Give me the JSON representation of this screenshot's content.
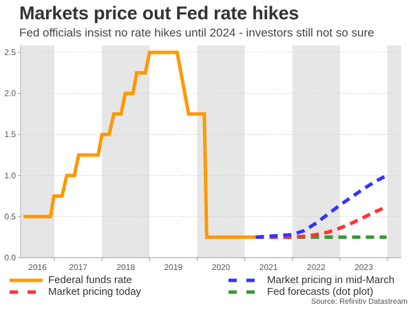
{
  "title": "Markets price out Fed rate hikes",
  "subtitle": "Fed officials insist no rate hikes until 2024 - investors still not so sure",
  "source": "Source: Refinitiv Datastream",
  "chart_data": {
    "type": "line",
    "title": "Markets price out Fed rate hikes",
    "subtitle": "Fed officials insist no rate hikes until 2024 - investors still not so sure",
    "xlabel": "",
    "ylabel": "",
    "xlim": [
      2016.3,
      2024.3
    ],
    "ylim": [
      0,
      2.6
    ],
    "yticks": [
      0.0,
      0.5,
      1.0,
      1.5,
      2.0,
      2.5
    ],
    "ytick_labels": [
      "0.0",
      "0.5",
      "1.0",
      "1.5",
      "2.0",
      "2.5"
    ],
    "xtick_labels": [
      "2016",
      "2017",
      "2018",
      "2019",
      "2020",
      "2021",
      "2022",
      "2023"
    ],
    "shaded_years": [
      2016,
      2018,
      2020,
      2022,
      2024
    ],
    "grid": "horizontal dotted",
    "legend_position": "bottom",
    "series": [
      {
        "name": "Federal funds rate",
        "color": "#ff9900",
        "style": "solid",
        "x": [
          2016.35,
          2016.92,
          2016.99,
          2017.16,
          2017.26,
          2017.42,
          2017.51,
          2017.92,
          2018.0,
          2018.15,
          2018.25,
          2018.4,
          2018.49,
          2018.65,
          2018.73,
          2018.91,
          2019.0,
          2019.58,
          2019.82,
          2020.15,
          2020.2,
          2021.23
        ],
        "y": [
          0.5,
          0.5,
          0.75,
          0.75,
          1.0,
          1.0,
          1.25,
          1.25,
          1.5,
          1.5,
          1.75,
          1.75,
          2.0,
          2.0,
          2.25,
          2.25,
          2.5,
          2.5,
          1.75,
          1.75,
          0.25,
          0.25
        ]
      },
      {
        "name": "Market pricing in mid-March",
        "color": "#3333ff",
        "style": "dashed",
        "x": [
          2021.23,
          2021.5,
          2021.75,
          2022.0,
          2022.25,
          2022.5,
          2022.75,
          2023.0,
          2023.25,
          2023.5,
          2023.75,
          2023.98
        ],
        "y": [
          0.25,
          0.26,
          0.27,
          0.28,
          0.33,
          0.42,
          0.53,
          0.64,
          0.74,
          0.84,
          0.93,
          1.0
        ]
      },
      {
        "name": "Market pricing today",
        "color": "#ff3333",
        "style": "dashed",
        "x": [
          2021.23,
          2021.5,
          2021.75,
          2022.0,
          2022.25,
          2022.5,
          2022.75,
          2023.0,
          2023.25,
          2023.5,
          2023.75,
          2023.98
        ],
        "y": [
          0.25,
          0.25,
          0.25,
          0.25,
          0.26,
          0.28,
          0.31,
          0.36,
          0.42,
          0.49,
          0.56,
          0.62
        ]
      },
      {
        "name": "Fed forecasts (dot plot)",
        "color": "#339933",
        "style": "dashed",
        "x": [
          2021.23,
          2023.98
        ],
        "y": [
          0.25,
          0.25
        ]
      }
    ]
  },
  "legend": [
    {
      "label": "Federal funds rate",
      "color": "#ff9900",
      "style": "solid"
    },
    {
      "label": "Market pricing in mid-March",
      "color": "#3333ff",
      "style": "dashed"
    },
    {
      "label": "Market pricing today",
      "color": "#ff3333",
      "style": "dashed"
    },
    {
      "label": "Fed forecasts (dot plot)",
      "color": "#339933",
      "style": "dashed"
    }
  ]
}
